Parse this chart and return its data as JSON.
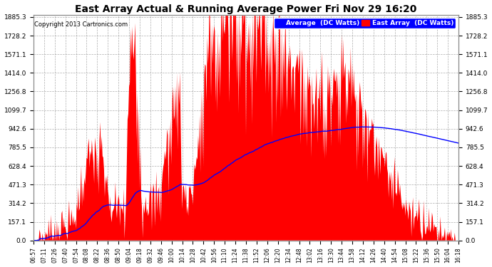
{
  "title": "East Array Actual & Running Average Power Fri Nov 29 16:20",
  "copyright": "Copyright 2013 Cartronics.com",
  "legend_labels": [
    "Average  (DC Watts)",
    "East Array  (DC Watts)"
  ],
  "yticks": [
    0.0,
    157.1,
    314.2,
    471.3,
    628.4,
    785.5,
    942.6,
    1099.7,
    1256.8,
    1414.0,
    1571.1,
    1728.2,
    1885.3
  ],
  "ymax": 1885.3,
  "ymin": 0.0,
  "plot_bg_color": "#ffffff",
  "grid_color": "#aaaaaa",
  "fill_color": "#ff0000",
  "avg_line_color": "#0000ff",
  "x_tick_labels": [
    "06:57",
    "07:11",
    "07:26",
    "07:40",
    "07:54",
    "08:08",
    "08:22",
    "08:36",
    "08:50",
    "09:04",
    "09:18",
    "09:32",
    "09:46",
    "10:00",
    "10:14",
    "10:28",
    "10:42",
    "10:56",
    "11:10",
    "11:24",
    "11:38",
    "11:52",
    "12:06",
    "12:20",
    "12:34",
    "12:48",
    "13:02",
    "13:16",
    "13:30",
    "13:44",
    "13:58",
    "14:12",
    "14:26",
    "14:40",
    "14:54",
    "15:08",
    "15:22",
    "15:36",
    "15:50",
    "16:04",
    "16:18"
  ]
}
